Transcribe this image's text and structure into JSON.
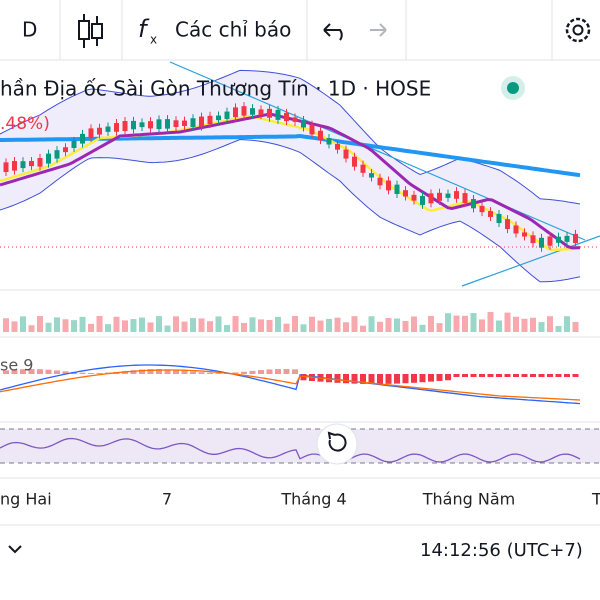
{
  "toolbar": {
    "interval": "D",
    "indicators": "Các chỉ báo"
  },
  "legend": {
    "symbol": "hần Địa ốc Sài Gòn Thương Tín · 1D · HOSE",
    "change": ".48%)",
    "macd": "se 9"
  },
  "x_axis": {
    "labels": [
      "ng Hai",
      "7",
      "Tháng 4",
      "Tháng Năm",
      "T"
    ]
  },
  "footer": {
    "time": "14:12:56 (UTC+7)"
  }
}
